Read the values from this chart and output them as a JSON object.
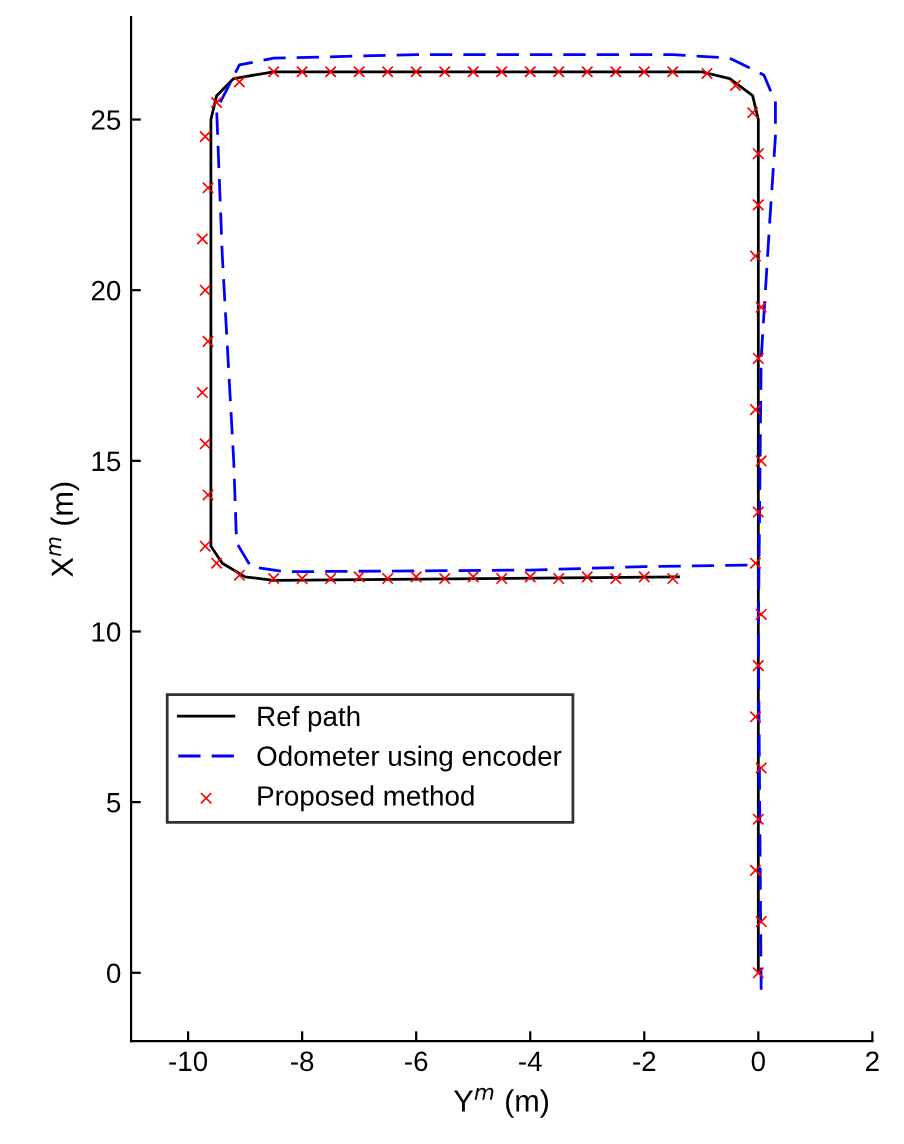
{
  "chart_data": {
    "type": "line",
    "xlabel": "Y$^{m}$ (m)",
    "ylabel": "X$^{m}$ (m)",
    "xlim": [
      -11,
      2
    ],
    "ylim": [
      -2,
      28
    ],
    "xticks": [
      -10,
      -8,
      -6,
      -4,
      -2,
      0,
      2
    ],
    "yticks": [
      0,
      5,
      10,
      15,
      20,
      25
    ],
    "grid": false,
    "legend": "bottom left",
    "series": [
      {
        "name": "Ref path",
        "color": "#000000",
        "line_style": "solid",
        "marker": "none",
        "x": [
          0,
          0,
          -0.1,
          -0.5,
          -1,
          -8.5,
          -9.2,
          -9.5,
          -9.6,
          -9.6,
          -9.4,
          -9,
          -8.5,
          -1.4
        ],
        "values": [
          0,
          25,
          25.7,
          26.2,
          26.4,
          26.4,
          26.2,
          25.7,
          25,
          12.5,
          12,
          11.6,
          11.5,
          11.6
        ]
      },
      {
        "name": "Odometer using encoder",
        "color": "#0000ff",
        "line_style": "dashed",
        "marker": "none",
        "x": [
          0.05,
          0,
          0.05,
          0.2,
          0.3,
          0.3,
          0.1,
          -0.5,
          -1.5,
          -6,
          -8.5,
          -9.1,
          -9.5,
          -9.4,
          -9.2,
          -9.15,
          -8.9,
          -8.3,
          -4,
          -2,
          -0.1
        ],
        "values": [
          -0.5,
          10,
          18,
          22,
          24.5,
          25.5,
          26.3,
          26.8,
          26.9,
          26.9,
          26.8,
          26.6,
          25.3,
          21,
          15,
          12.6,
          11.9,
          11.75,
          11.8,
          11.9,
          11.95
        ]
      },
      {
        "name": "Proposed method",
        "type": "scatter",
        "color": "#ff0000",
        "line_style": "none",
        "marker": "cross",
        "x": [
          0,
          0.05,
          -0.05,
          0,
          0.05,
          -0.05,
          0,
          0.05,
          -0.05,
          0,
          0.05,
          -0.05,
          0,
          0.05,
          -0.05,
          0,
          0,
          -0.1,
          -0.4,
          -0.9,
          -1.5,
          -2,
          -2.5,
          -3,
          -3.5,
          -4,
          -4.5,
          -5,
          -5.5,
          -6,
          -6.5,
          -7,
          -7.5,
          -8,
          -8.5,
          -9.1,
          -9.5,
          -9.7,
          -9.65,
          -9.75,
          -9.7,
          -9.65,
          -9.75,
          -9.7,
          -9.65,
          -9.7,
          -9.5,
          -9.1,
          -8.5,
          -8,
          -7.5,
          -7,
          -6.5,
          -6,
          -5.5,
          -5,
          -4.5,
          -4,
          -3.5,
          -3,
          -2.5,
          -2,
          -1.5
        ],
        "values": [
          0,
          1.5,
          3,
          4.5,
          6,
          7.5,
          9,
          10.5,
          12,
          13.5,
          15,
          16.5,
          18,
          19.5,
          21,
          22.5,
          24,
          25.2,
          26,
          26.35,
          26.4,
          26.4,
          26.4,
          26.4,
          26.4,
          26.4,
          26.4,
          26.4,
          26.4,
          26.4,
          26.4,
          26.4,
          26.4,
          26.4,
          26.4,
          26.1,
          25.5,
          24.5,
          23,
          21.5,
          20,
          18.5,
          17,
          15.5,
          14,
          12.5,
          12,
          11.65,
          11.55,
          11.55,
          11.55,
          11.6,
          11.55,
          11.6,
          11.55,
          11.6,
          11.55,
          11.6,
          11.55,
          11.6,
          11.55,
          11.6,
          11.55
        ]
      }
    ]
  }
}
